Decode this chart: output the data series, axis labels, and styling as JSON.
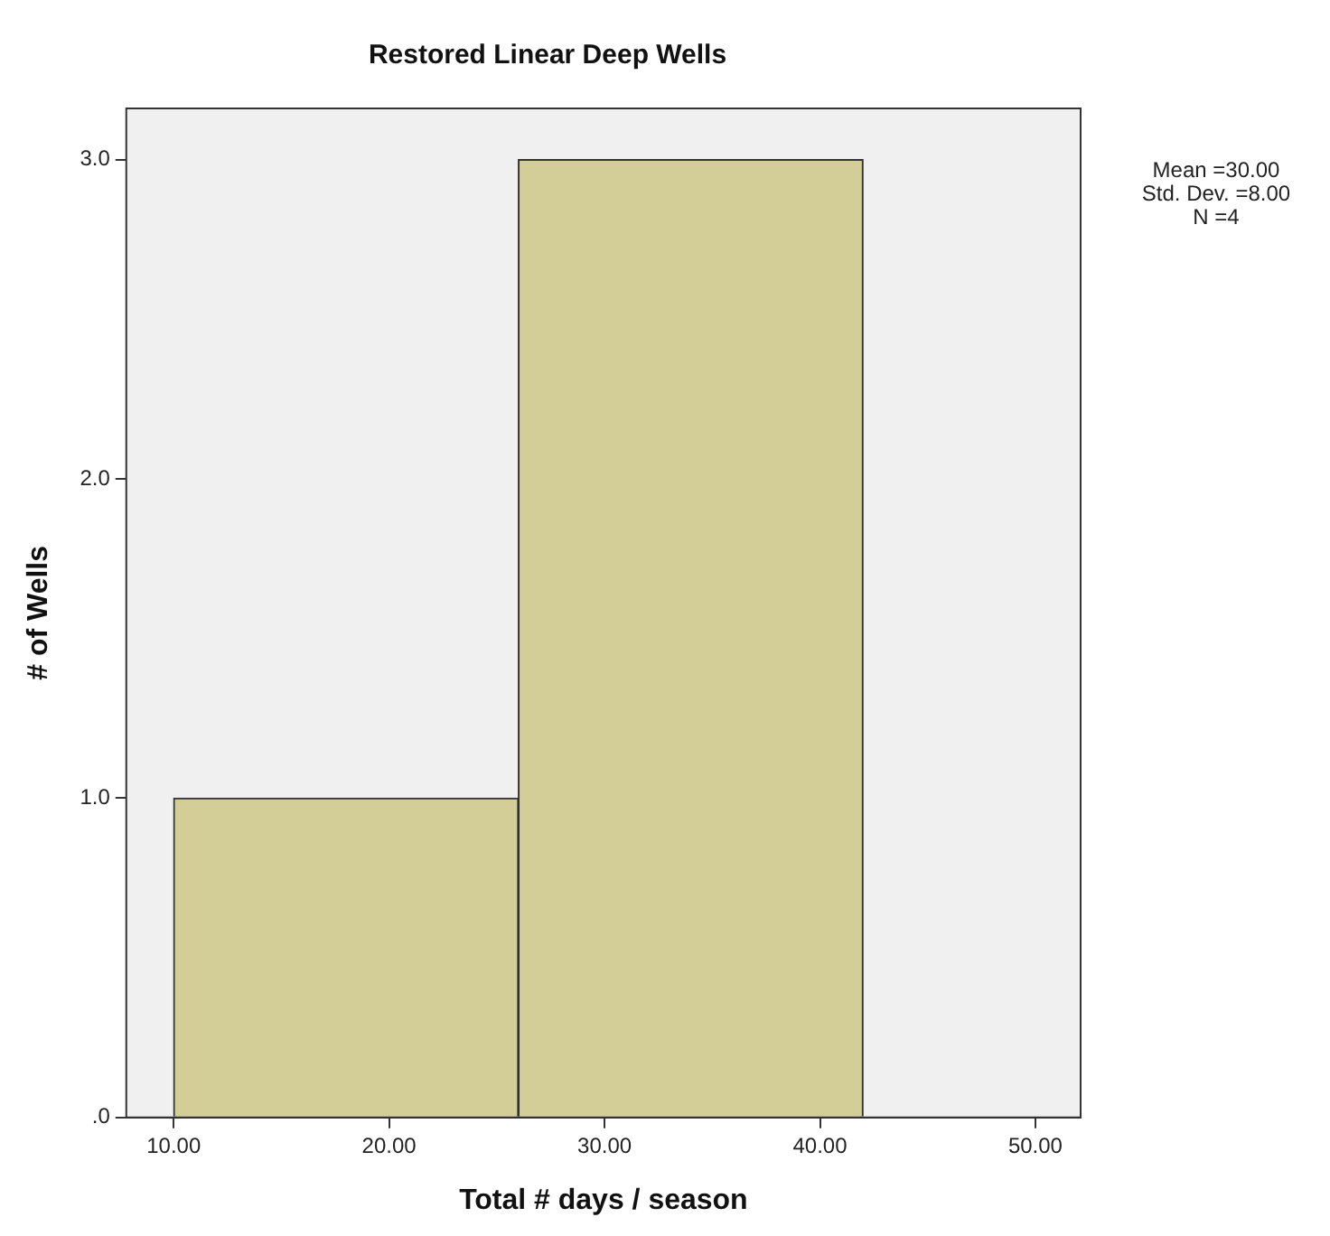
{
  "chart_data": {
    "type": "histogram",
    "title": "Restored Linear Deep Wells",
    "xlabel": "Total # days / season",
    "ylabel": "# of Wells",
    "bins": [
      10,
      26,
      42
    ],
    "values": [
      1,
      3
    ],
    "color": "#d3ce98",
    "xlim": [
      7.8,
      52.1
    ],
    "xticks": [
      {
        "value": 10,
        "label": "10.00"
      },
      {
        "value": 20,
        "label": "20.00"
      },
      {
        "value": 30,
        "label": "30.00"
      },
      {
        "value": 40,
        "label": "40.00"
      },
      {
        "value": 50,
        "label": "50.00"
      }
    ],
    "ylim": [
      0,
      3.16
    ],
    "yticks": [
      {
        "value": 0,
        "label": ".0"
      },
      {
        "value": 1,
        "label": "1.0"
      },
      {
        "value": 2,
        "label": "2.0"
      },
      {
        "value": 3,
        "label": "3.0"
      }
    ],
    "annotations": [
      "Mean =30.00",
      "Std. Dev. =8.00",
      "N =4"
    ]
  }
}
